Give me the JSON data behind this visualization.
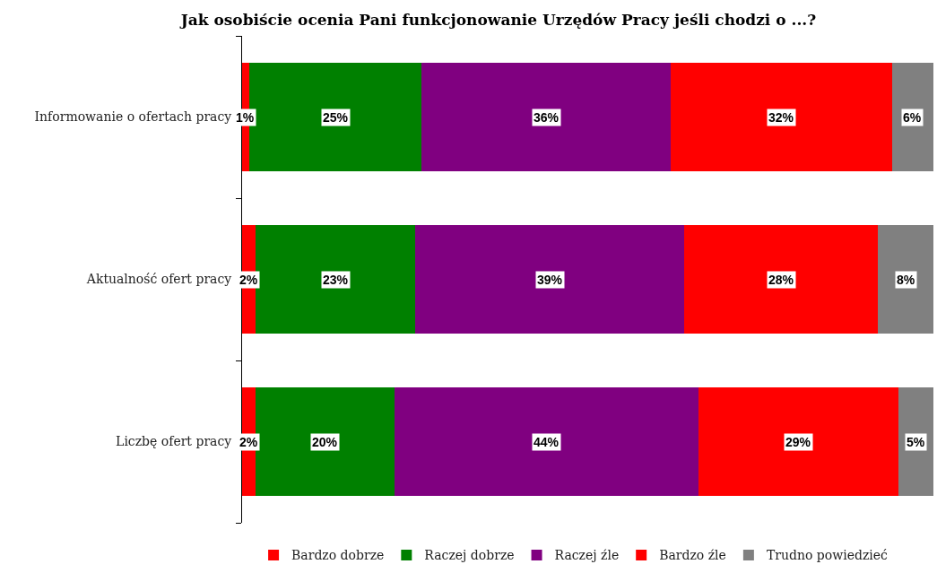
{
  "chart_data": {
    "type": "bar",
    "orientation": "horizontal",
    "stacked": true,
    "title": "Jak osobiście ocenia Pani funkcjonowanie Urzędów Pracy jeśli chodzi o ...?",
    "categories": [
      "Informowanie o ofertach pracy",
      "Aktualność ofert pracy",
      "Liczbę ofert pracy"
    ],
    "series": [
      {
        "name": "Bardzo dobrze",
        "color": "#ff0000",
        "values": [
          1,
          2,
          2
        ],
        "value_labels": [
          "1%",
          "2%",
          "2%"
        ]
      },
      {
        "name": "Raczej dobrze",
        "color": "#008000",
        "values": [
          25,
          23,
          20
        ],
        "value_labels": [
          "25%",
          "23%",
          "20%"
        ]
      },
      {
        "name": "Raczej źle",
        "color": "#800080",
        "values": [
          36,
          39,
          44
        ],
        "value_labels": [
          "36%",
          "39%",
          "44%"
        ]
      },
      {
        "name": "Bardzo źle",
        "color": "#ff0000",
        "values": [
          32,
          28,
          29
        ],
        "value_labels": [
          "32%",
          "28%",
          "29%"
        ]
      },
      {
        "name": "Trudno powiedzieć",
        "color": "#808080",
        "values": [
          6,
          8,
          5
        ],
        "value_labels": [
          "6%",
          "8%",
          "5%"
        ]
      }
    ],
    "legend": "bottom",
    "tick_labels": "y"
  }
}
